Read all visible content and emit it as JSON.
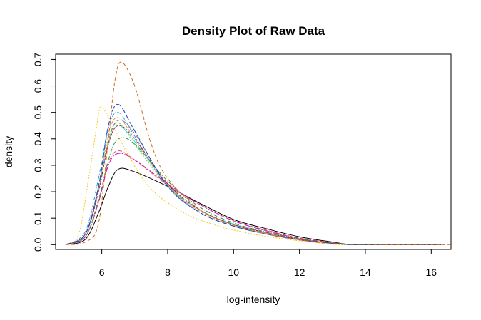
{
  "chart_data": {
    "type": "line",
    "title": "Density Plot of Raw Data",
    "xlabel": "log-intensity",
    "ylabel": "density",
    "xlim": [
      4.6,
      16.6
    ],
    "ylim": [
      -0.018,
      0.72
    ],
    "xticks": [
      6,
      8,
      10,
      12,
      14,
      16
    ],
    "yticks": [
      0.0,
      0.1,
      0.2,
      0.3,
      0.4,
      0.5,
      0.6,
      0.7
    ],
    "xtick_labels": [
      "6",
      "8",
      "10",
      "12",
      "14",
      "16"
    ],
    "ytick_labels": [
      "0.0",
      "0.1",
      "0.2",
      "0.3",
      "0.4",
      "0.5",
      "0.6",
      "0.7"
    ],
    "grid": false,
    "legend": "none",
    "series": [
      {
        "color": "#000000",
        "dash": "none",
        "x": [
          4.9,
          5.5,
          5.9,
          6.2,
          6.5,
          7.0,
          8.0,
          9.0,
          10.0,
          11.0,
          12.0,
          13.0,
          13.6,
          14.5,
          16.3
        ],
        "y": [
          0.0,
          0.02,
          0.12,
          0.22,
          0.285,
          0.275,
          0.22,
          0.155,
          0.095,
          0.06,
          0.03,
          0.01,
          0.0,
          0.0,
          0.0
        ]
      },
      {
        "color": "#DF536B",
        "dash": "6,3",
        "x": [
          4.9,
          5.5,
          5.9,
          6.2,
          6.5,
          7.0,
          8.0,
          9.0,
          10.0,
          11.0,
          12.0,
          13.0,
          13.6,
          14.5,
          16.3
        ],
        "y": [
          0.0,
          0.03,
          0.17,
          0.31,
          0.355,
          0.32,
          0.225,
          0.15,
          0.09,
          0.055,
          0.025,
          0.008,
          0.0,
          0.0,
          0.0
        ]
      },
      {
        "color": "#61D04F",
        "dash": "2,2",
        "x": [
          4.9,
          5.5,
          5.9,
          6.2,
          6.5,
          7.0,
          8.0,
          9.0,
          10.0,
          11.0,
          12.0,
          13.0,
          13.6,
          14.5,
          16.3
        ],
        "y": [
          0.0,
          0.04,
          0.22,
          0.4,
          0.46,
          0.38,
          0.22,
          0.13,
          0.075,
          0.045,
          0.02,
          0.006,
          0.0,
          0.0,
          0.0
        ]
      },
      {
        "color": "#2297E6",
        "dash": "5,2,1,2",
        "x": [
          4.9,
          5.5,
          5.9,
          6.2,
          6.5,
          7.0,
          8.0,
          9.0,
          10.0,
          11.0,
          12.0,
          13.0,
          13.6,
          14.5,
          16.3
        ],
        "y": [
          0.0,
          0.05,
          0.25,
          0.44,
          0.5,
          0.41,
          0.22,
          0.12,
          0.07,
          0.04,
          0.018,
          0.005,
          0.0,
          0.0,
          0.0
        ]
      },
      {
        "color": "#28E2E5",
        "dash": "10,3",
        "x": [
          4.9,
          5.5,
          5.9,
          6.2,
          6.5,
          7.0,
          8.0,
          9.0,
          10.0,
          11.0,
          12.0,
          13.0,
          13.6,
          14.5,
          16.3
        ],
        "y": [
          0.0,
          0.04,
          0.2,
          0.38,
          0.45,
          0.39,
          0.225,
          0.13,
          0.078,
          0.046,
          0.02,
          0.006,
          0.0,
          0.0,
          0.0
        ]
      },
      {
        "color": "#CD0BBC",
        "dash": "8,2,2,2",
        "x": [
          4.9,
          5.5,
          5.9,
          6.2,
          6.5,
          7.0,
          8.0,
          9.0,
          10.0,
          11.0,
          12.0,
          13.0,
          13.6,
          14.5,
          16.3
        ],
        "y": [
          0.0,
          0.03,
          0.16,
          0.3,
          0.345,
          0.32,
          0.23,
          0.15,
          0.09,
          0.052,
          0.024,
          0.007,
          0.0,
          0.0,
          0.0
        ]
      },
      {
        "color": "#F5C710",
        "dash": "2,2",
        "x": [
          4.9,
          5.3,
          5.6,
          5.9,
          6.0,
          6.3,
          6.8,
          7.5,
          8.5,
          9.5,
          10.5,
          11.5,
          12.5,
          13.2,
          14.5,
          16.3
        ],
        "y": [
          0.0,
          0.04,
          0.25,
          0.49,
          0.52,
          0.46,
          0.34,
          0.21,
          0.12,
          0.072,
          0.042,
          0.022,
          0.008,
          0.0,
          0.0,
          0.0
        ]
      },
      {
        "color": "#808080",
        "dash": "6,3",
        "x": [
          4.9,
          5.5,
          5.9,
          6.2,
          6.5,
          7.0,
          8.0,
          9.0,
          10.0,
          11.0,
          12.0,
          13.0,
          13.6,
          14.5,
          16.3
        ],
        "y": [
          0.0,
          0.04,
          0.21,
          0.39,
          0.47,
          0.42,
          0.225,
          0.13,
          0.075,
          0.045,
          0.02,
          0.006,
          0.0,
          0.0,
          0.0
        ]
      },
      {
        "color": "#E0A060",
        "dash": "4,2",
        "x": [
          4.9,
          5.5,
          5.9,
          6.2,
          6.5,
          7.0,
          8.0,
          9.0,
          10.0,
          11.0,
          12.0,
          13.0,
          13.6,
          14.5,
          16.3
        ],
        "y": [
          0.0,
          0.04,
          0.22,
          0.42,
          0.48,
          0.4,
          0.22,
          0.125,
          0.072,
          0.042,
          0.019,
          0.005,
          0.0,
          0.0,
          0.0
        ]
      },
      {
        "color": "#C8102E",
        "dash": "3,2",
        "x": [
          4.9,
          5.5,
          5.9,
          6.2,
          6.5,
          7.0,
          8.0,
          9.0,
          10.0,
          11.0,
          12.0,
          13.0,
          13.6,
          14.5,
          16.3
        ],
        "y": [
          0.0,
          0.04,
          0.2,
          0.38,
          0.45,
          0.4,
          0.23,
          0.13,
          0.076,
          0.045,
          0.02,
          0.006,
          0.0,
          0.0,
          0.0
        ]
      },
      {
        "color": "#3C8D3C",
        "dash": "6,2,1,2",
        "x": [
          4.9,
          5.5,
          5.9,
          6.2,
          6.5,
          7.0,
          8.0,
          9.0,
          10.0,
          11.0,
          12.0,
          13.0,
          13.6,
          14.5,
          16.3
        ],
        "y": [
          0.0,
          0.03,
          0.16,
          0.32,
          0.4,
          0.38,
          0.24,
          0.14,
          0.082,
          0.048,
          0.022,
          0.006,
          0.0,
          0.0,
          0.0
        ]
      },
      {
        "color": "#1F3FBF",
        "dash": "8,3",
        "x": [
          4.9,
          5.5,
          5.9,
          6.2,
          6.5,
          7.0,
          8.0,
          9.0,
          10.0,
          11.0,
          12.0,
          13.0,
          13.6,
          14.5,
          16.3
        ],
        "y": [
          0.0,
          0.04,
          0.22,
          0.45,
          0.53,
          0.43,
          0.22,
          0.12,
          0.07,
          0.04,
          0.018,
          0.005,
          0.0,
          0.0,
          0.0
        ]
      },
      {
        "color": "#D2691E",
        "dash": "5,3",
        "x": [
          4.9,
          5.5,
          5.9,
          6.2,
          6.4,
          6.6,
          7.0,
          7.5,
          8.0,
          9.0,
          10.0,
          11.0,
          12.0,
          13.0,
          14.5,
          16.6
        ],
        "y": [
          0.0,
          0.01,
          0.08,
          0.4,
          0.62,
          0.69,
          0.6,
          0.38,
          0.25,
          0.13,
          0.075,
          0.04,
          0.018,
          0.004,
          0.0,
          0.0
        ]
      }
    ]
  }
}
